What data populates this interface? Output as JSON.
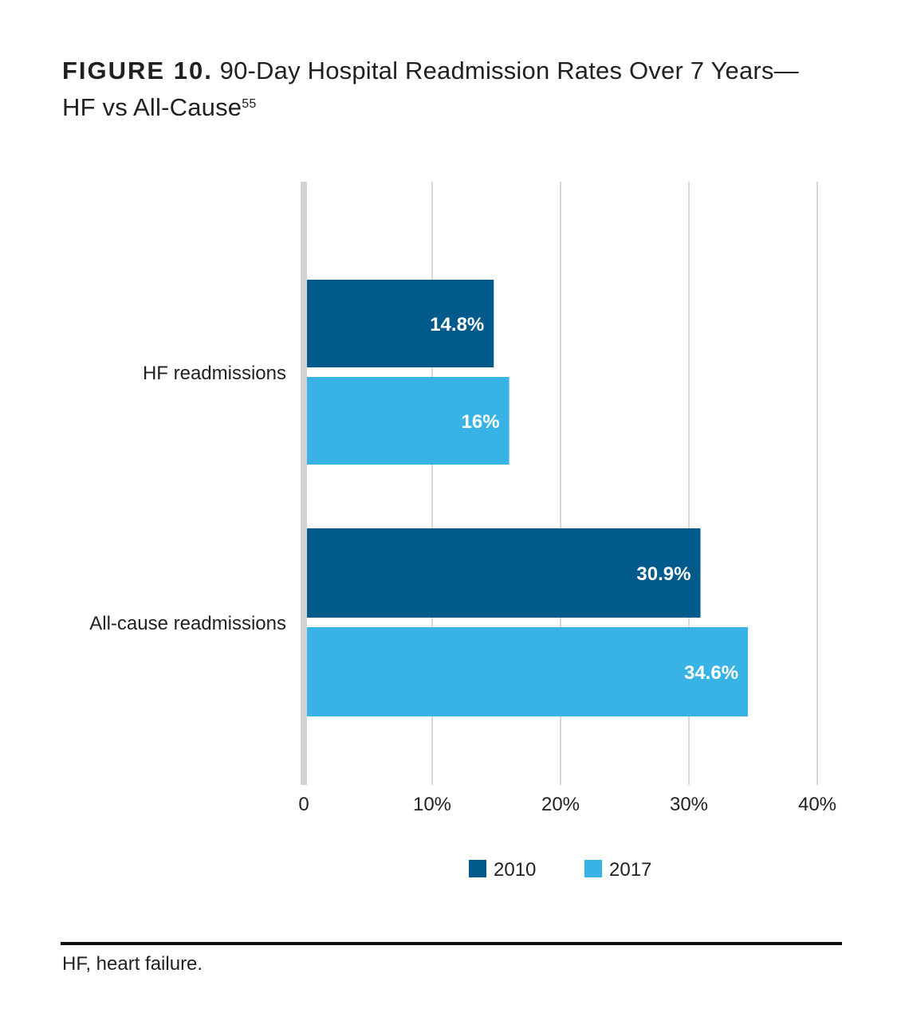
{
  "figure": {
    "label": "FIGURE 10.",
    "title": "90-Day Hospital Readmission Rates Over 7 Years—",
    "title_line2": "HF vs All-Cause",
    "reference": "55"
  },
  "chart_data": {
    "type": "bar",
    "orientation": "horizontal",
    "categories": [
      "HF readmissions",
      "All-cause readmissions"
    ],
    "series": [
      {
        "name": "2010",
        "color": "#005a8c",
        "values": [
          14.8,
          30.9
        ],
        "labels": [
          "14.8%",
          "30.9%"
        ]
      },
      {
        "name": "2017",
        "color": "#39b3e6",
        "values": [
          16,
          34.6
        ],
        "labels": [
          "16%",
          "34.6%"
        ]
      }
    ],
    "xlim": [
      0,
      40
    ],
    "xticks": [
      0,
      10,
      20,
      30,
      40
    ],
    "xtick_labels": [
      "0",
      "10%",
      "20%",
      "30%",
      "40%"
    ],
    "grid": true,
    "legend_position": "bottom-center"
  },
  "footnote": "HF, heart failure."
}
